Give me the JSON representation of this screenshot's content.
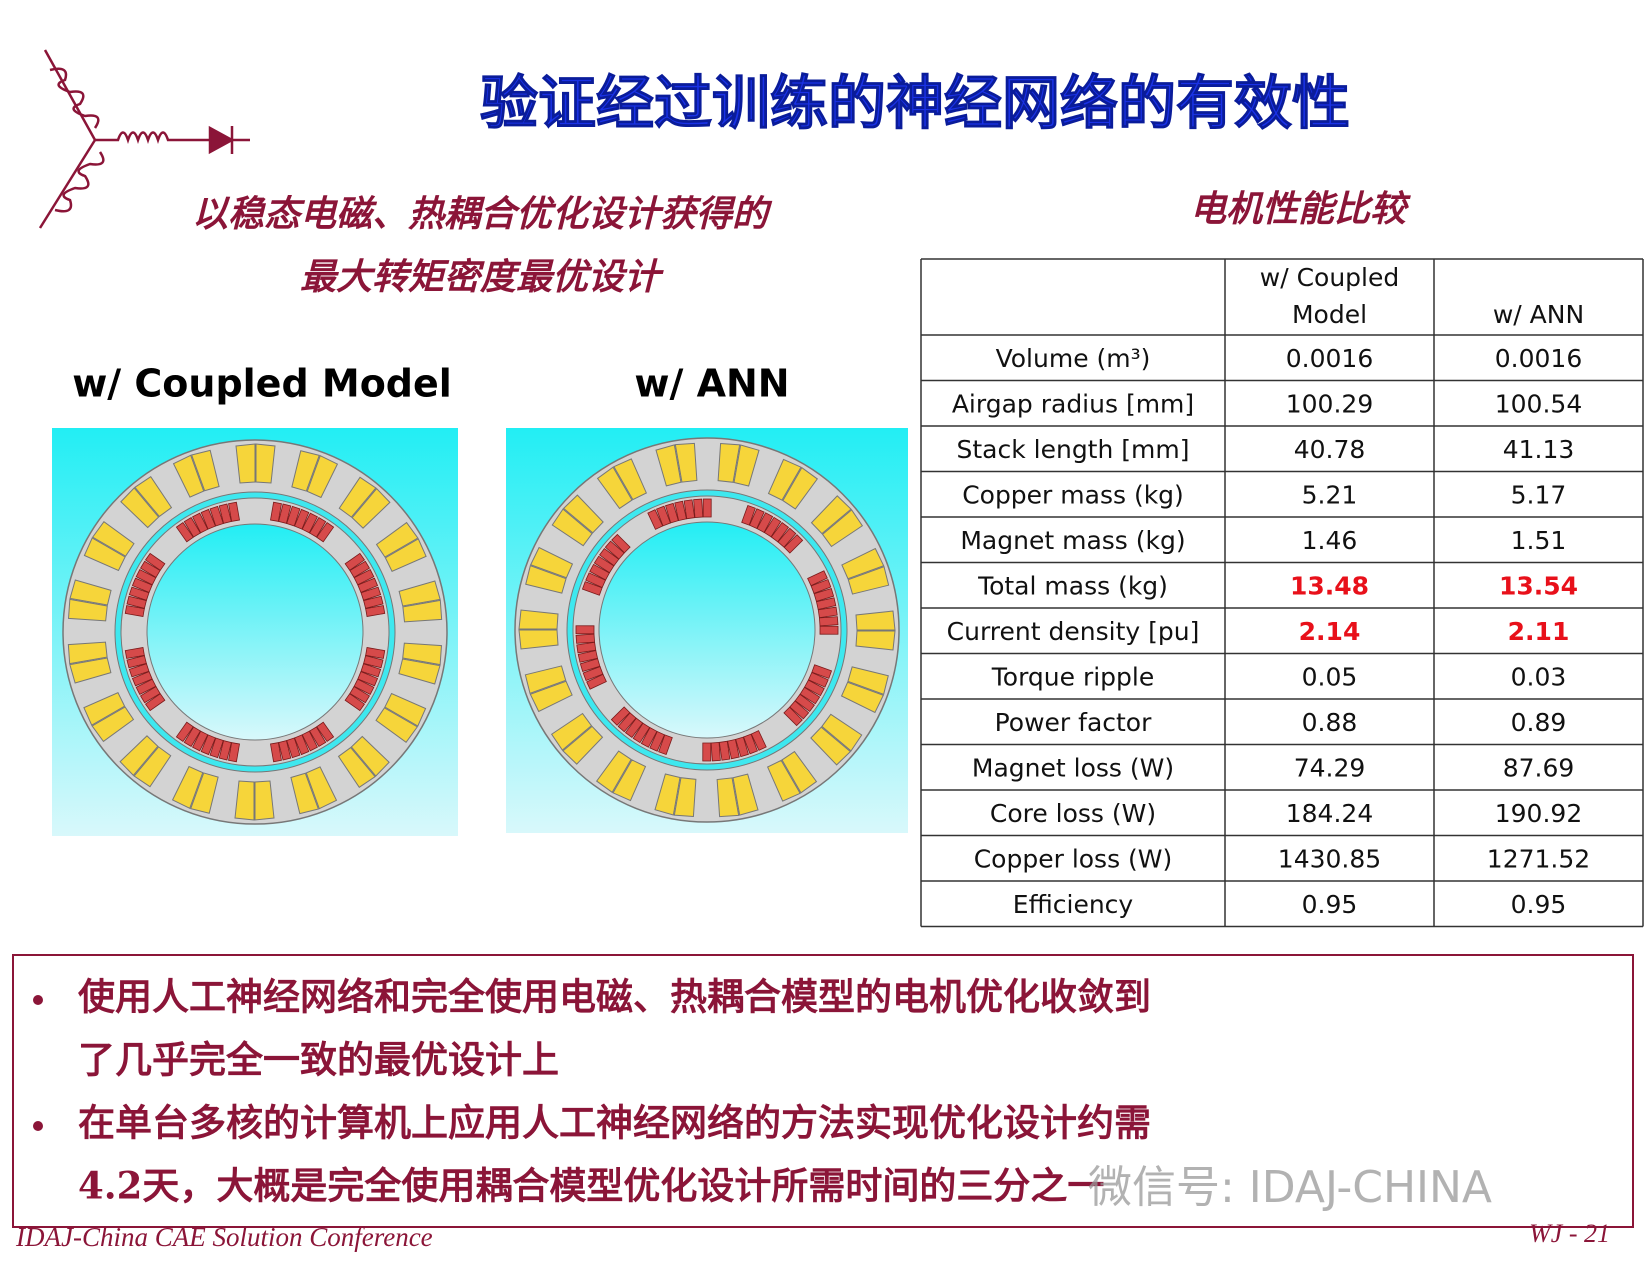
{
  "header": {
    "title": "验证经过训练的神经网络的有效性"
  },
  "subtitle": {
    "lines": [
      "以稳态电磁、热耦合优化设计获得的",
      "最大转矩密度最优设计"
    ]
  },
  "figures": {
    "labels": [
      "w/ Coupled Model",
      "w/ ANN"
    ]
  },
  "table": {
    "title": "电机性能比较",
    "header": [
      "w/ Coupled",
      "Model",
      "w/ ANN"
    ],
    "rows": [
      {
        "cells": [
          "Volume (m³)",
          "0.0016",
          "0.0016"
        ]
      },
      {
        "cells": [
          "Airgap radius [mm]",
          "100.29",
          "100.54"
        ]
      },
      {
        "cells": [
          "Stack length [mm]",
          "40.78",
          "41.13"
        ]
      },
      {
        "cells": [
          "Copper mass (kg)",
          "5.21",
          "5.17"
        ]
      },
      {
        "cells": [
          "Magnet mass (kg)",
          "1.46",
          "1.51"
        ]
      },
      {
        "cells": [
          "Total mass (kg)",
          "13.48",
          "13.54"
        ],
        "color": "#e8101a"
      },
      {
        "cells": [
          "Current density [pu]",
          "2.14",
          "2.11"
        ],
        "color": "#e8101a"
      },
      {
        "cells": [
          "Torque ripple",
          "0.05",
          "0.03"
        ]
      },
      {
        "cells": [
          "Power factor",
          "0.88",
          "0.89"
        ]
      },
      {
        "cells": [
          "Magnet loss (W)",
          "74.29",
          "87.69"
        ]
      },
      {
        "cells": [
          "Core loss (W)",
          "184.24",
          "190.92"
        ]
      },
      {
        "cells": [
          "Copper loss (W)",
          "1430.85",
          "1271.52"
        ]
      },
      {
        "cells": [
          "Efficiency",
          "0.95",
          "0.95"
        ]
      }
    ]
  },
  "bullets": [
    [
      "使用人工神经网络和完全使用电磁、热耦合模型的电机优化收敛到",
      "了几乎完全一致的最优设计上"
    ],
    [
      "在单台多核的计算机上应用人工神经网络的方法实现优化设计约需",
      "4.2天，大概是完全使用耦合模型优化设计所需时间的三分之一"
    ]
  ],
  "footer": {
    "left": "IDAJ-China CAE Solution Conference",
    "right": "WJ - 21"
  },
  "watermark": "微信号: IDAJ-CHINA"
}
